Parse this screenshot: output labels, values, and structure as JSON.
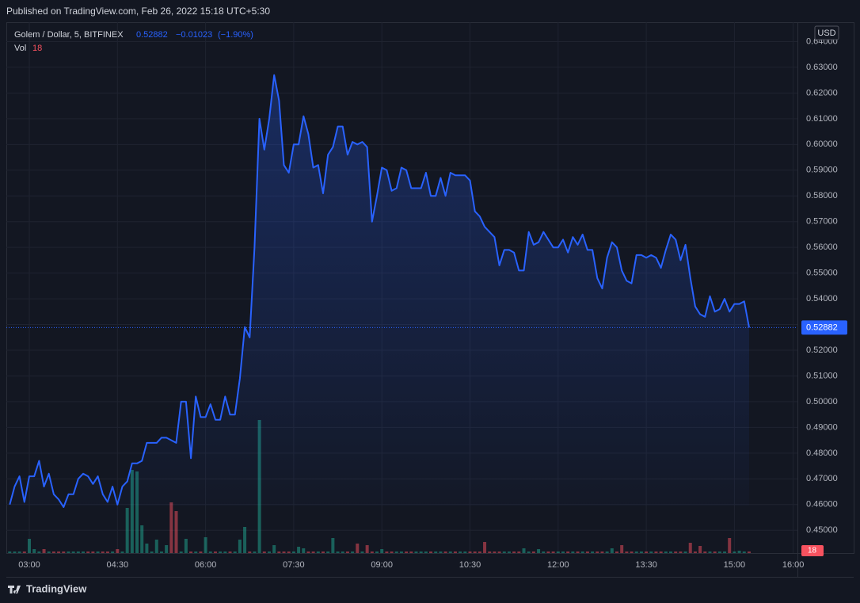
{
  "header": {
    "published": "Published on TradingView.com, Feb 26, 2022 15:18 UTC+5:30"
  },
  "footer": {
    "brand": "TradingView"
  },
  "chart_data": {
    "type": "line",
    "currency": "USD",
    "change": {
      "value": -0.01023,
      "label": "−0.01023"
    },
    "change_percent": {
      "value": -1.9,
      "label": "(−1.90%)"
    },
    "x": [
      "02:40",
      "02:45",
      "02:50",
      "02:55",
      "03:00",
      "03:05",
      "03:10",
      "03:15",
      "03:20",
      "03:25",
      "03:30",
      "03:35",
      "03:40",
      "03:45",
      "03:50",
      "03:55",
      "04:00",
      "04:05",
      "04:10",
      "04:15",
      "04:20",
      "04:25",
      "04:30",
      "04:35",
      "04:40",
      "04:45",
      "04:50",
      "04:55",
      "05:00",
      "05:05",
      "05:10",
      "05:15",
      "05:20",
      "05:25",
      "05:30",
      "05:35",
      "05:40",
      "05:45",
      "05:50",
      "05:55",
      "06:00",
      "06:05",
      "06:10",
      "06:15",
      "06:20",
      "06:25",
      "06:30",
      "06:35",
      "06:40",
      "06:45",
      "06:50",
      "06:55",
      "07:00",
      "07:05",
      "07:10",
      "07:15",
      "07:20",
      "07:25",
      "07:30",
      "07:35",
      "07:40",
      "07:45",
      "07:50",
      "07:55",
      "08:00",
      "08:05",
      "08:10",
      "08:15",
      "08:20",
      "08:25",
      "08:30",
      "08:35",
      "08:40",
      "08:45",
      "08:50",
      "08:55",
      "09:00",
      "09:05",
      "09:10",
      "09:15",
      "09:20",
      "09:25",
      "09:30",
      "09:35",
      "09:40",
      "09:45",
      "09:50",
      "09:55",
      "10:00",
      "10:05",
      "10:10",
      "10:15",
      "10:20",
      "10:25",
      "10:30",
      "10:35",
      "10:40",
      "10:45",
      "10:50",
      "10:55",
      "11:00",
      "11:05",
      "11:10",
      "11:15",
      "11:20",
      "11:25",
      "11:30",
      "11:35",
      "11:40",
      "11:45",
      "11:50",
      "11:55",
      "12:00",
      "12:05",
      "12:10",
      "12:15",
      "12:20",
      "12:25",
      "12:30",
      "12:35",
      "12:40",
      "12:45",
      "12:50",
      "12:55",
      "13:00",
      "13:05",
      "13:10",
      "13:15",
      "13:20",
      "13:25",
      "13:30",
      "13:35",
      "13:40",
      "13:45",
      "13:50",
      "13:55",
      "14:00",
      "14:05",
      "14:10",
      "14:15",
      "14:20",
      "14:25",
      "14:30",
      "14:35",
      "14:40",
      "14:45",
      "14:50",
      "14:55",
      "15:00",
      "15:05",
      "15:10",
      "15:15"
    ],
    "series": [
      {
        "name": "Golem / Dollar, 5, BITFINEX",
        "color": "#2962ff",
        "values": [
          0.46,
          0.467,
          0.471,
          0.461,
          0.471,
          0.471,
          0.477,
          0.467,
          0.472,
          0.464,
          0.462,
          0.459,
          0.464,
          0.464,
          0.47,
          0.472,
          0.471,
          0.468,
          0.471,
          0.464,
          0.461,
          0.467,
          0.46,
          0.467,
          0.469,
          0.476,
          0.476,
          0.477,
          0.484,
          0.484,
          0.484,
          0.486,
          0.486,
          0.485,
          0.484,
          0.5,
          0.5,
          0.478,
          0.502,
          0.494,
          0.494,
          0.499,
          0.493,
          0.493,
          0.502,
          0.495,
          0.495,
          0.509,
          0.529,
          0.525,
          0.56,
          0.61,
          0.598,
          0.61,
          0.627,
          0.617,
          0.592,
          0.589,
          0.6,
          0.6,
          0.611,
          0.604,
          0.591,
          0.592,
          0.581,
          0.596,
          0.599,
          0.607,
          0.607,
          0.596,
          0.601,
          0.6,
          0.601,
          0.599,
          0.57,
          0.58,
          0.591,
          0.59,
          0.582,
          0.583,
          0.591,
          0.59,
          0.583,
          0.583,
          0.583,
          0.589,
          0.58,
          0.58,
          0.587,
          0.58,
          0.589,
          0.588,
          0.588,
          0.588,
          0.586,
          0.574,
          0.572,
          0.568,
          0.566,
          0.564,
          0.553,
          0.559,
          0.559,
          0.558,
          0.551,
          0.551,
          0.566,
          0.561,
          0.562,
          0.566,
          0.563,
          0.56,
          0.56,
          0.563,
          0.558,
          0.564,
          0.561,
          0.565,
          0.559,
          0.559,
          0.548,
          0.544,
          0.556,
          0.562,
          0.56,
          0.551,
          0.547,
          0.546,
          0.557,
          0.557,
          0.556,
          0.557,
          0.556,
          0.552,
          0.559,
          0.565,
          0.563,
          0.555,
          0.561,
          0.548,
          0.537,
          0.534,
          0.533,
          0.541,
          0.535,
          0.536,
          0.54,
          0.535,
          0.538,
          0.538,
          0.539,
          0.52882
        ]
      }
    ],
    "volume": {
      "name": "Vol",
      "up_color": "#22ab94",
      "down_color": "#f7525f",
      "values": [
        18,
        18,
        18,
        18,
        162,
        45,
        18,
        45,
        18,
        18,
        18,
        18,
        18,
        18,
        18,
        18,
        18,
        18,
        18,
        18,
        18,
        18,
        45,
        18,
        513,
        945,
        927,
        315,
        108,
        18,
        153,
        18,
        90,
        576,
        477,
        18,
        162,
        18,
        18,
        18,
        180,
        18,
        18,
        18,
        18,
        18,
        18,
        153,
        297,
        18,
        18,
        1512,
        18,
        18,
        90,
        18,
        18,
        18,
        18,
        72,
        54,
        18,
        18,
        18,
        18,
        18,
        171,
        18,
        18,
        18,
        18,
        108,
        18,
        90,
        18,
        18,
        45,
        18,
        18,
        18,
        18,
        18,
        18,
        18,
        18,
        18,
        18,
        18,
        18,
        18,
        18,
        18,
        18,
        18,
        18,
        18,
        18,
        126,
        18,
        18,
        18,
        18,
        18,
        18,
        18,
        54,
        18,
        18,
        45,
        18,
        18,
        18,
        18,
        18,
        18,
        18,
        18,
        18,
        18,
        18,
        18,
        18,
        18,
        54,
        18,
        90,
        18,
        18,
        18,
        18,
        18,
        18,
        18,
        18,
        18,
        18,
        18,
        18,
        18,
        117,
        18,
        81,
        18,
        18,
        18,
        18,
        18,
        171,
        18,
        27,
        18,
        18
      ]
    },
    "ylim": [
      0.44114,
      0.64754
    ],
    "yticks": [
      {
        "value": 0.45,
        "label": "0.45000"
      },
      {
        "value": 0.46,
        "label": "0.46000"
      },
      {
        "value": 0.47,
        "label": "0.47000"
      },
      {
        "value": 0.48,
        "label": "0.48000"
      },
      {
        "value": 0.49,
        "label": "0.49000"
      },
      {
        "value": 0.5,
        "label": "0.50000"
      },
      {
        "value": 0.51,
        "label": "0.51000"
      },
      {
        "value": 0.52,
        "label": "0.52000"
      },
      {
        "value": 0.53,
        "label": "0.53000"
      },
      {
        "value": 0.54,
        "label": "0.54000"
      },
      {
        "value": 0.55,
        "label": "0.55000"
      },
      {
        "value": 0.56,
        "label": "0.56000"
      },
      {
        "value": 0.57,
        "label": "0.57000"
      },
      {
        "value": 0.58,
        "label": "0.58000"
      },
      {
        "value": 0.59,
        "label": "0.59000"
      },
      {
        "value": 0.6,
        "label": "0.60000"
      },
      {
        "value": 0.61,
        "label": "0.61000"
      },
      {
        "value": 0.62,
        "label": "0.62000"
      },
      {
        "value": 0.63,
        "label": "0.63000"
      },
      {
        "value": 0.64,
        "label": "0.64000"
      }
    ],
    "xticks": [
      "03:00",
      "04:30",
      "06:00",
      "07:30",
      "09:00",
      "10:30",
      "12:00",
      "13:30",
      "15:00",
      "16:00"
    ],
    "grid": true
  }
}
